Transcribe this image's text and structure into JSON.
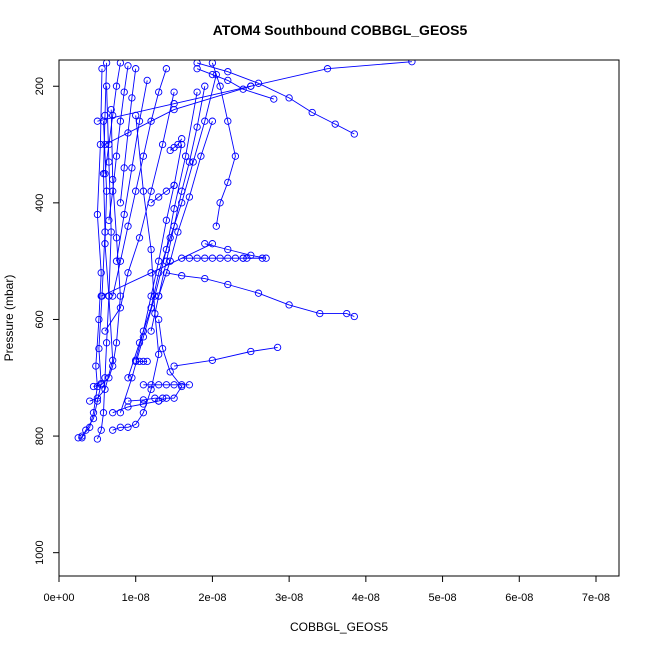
{
  "chart_data": {
    "type": "line",
    "title": "ATOM4 Southbound COBBGL_GEOS5",
    "xlabel": "COBBGL_GEOS5",
    "ylabel": "Pressure (mbar)",
    "xlim": [
      0,
      7.3e-08
    ],
    "ylim": [
      1040,
      155
    ],
    "y_reversed": true,
    "x_ticks": [
      {
        "value": 0,
        "label": "0e+00"
      },
      {
        "value": 1e-08,
        "label": "1e-08"
      },
      {
        "value": 2e-08,
        "label": "2e-08"
      },
      {
        "value": 3e-08,
        "label": "3e-08"
      },
      {
        "value": 4e-08,
        "label": "4e-08"
      },
      {
        "value": 5e-08,
        "label": "5e-08"
      },
      {
        "value": 6e-08,
        "label": "6e-08"
      },
      {
        "value": 7e-08,
        "label": "7e-08"
      }
    ],
    "y_ticks": [
      {
        "value": 200,
        "label": "200"
      },
      {
        "value": 400,
        "label": "400"
      },
      {
        "value": 600,
        "label": "600"
      },
      {
        "value": 800,
        "label": "800"
      },
      {
        "value": 1000,
        "label": "1000"
      }
    ],
    "series_color": "#0000ff",
    "marker": "open-circle",
    "series": [
      {
        "x": [
          2.5e-09,
          3e-09,
          3.5e-09,
          4.5e-09,
          5e-09,
          5.5e-09,
          5.2e-09,
          5.6e-09,
          6e-09,
          5.8e-09,
          6e-09,
          6.2e-09
        ],
        "y": [
          803,
          803,
          790,
          770,
          740,
          710,
          650,
          560,
          450,
          350,
          250,
          160
        ]
      },
      {
        "x": [
          3e-09,
          4e-09,
          4.5e-09,
          5e-09,
          4.8e-09,
          5.2e-09,
          5.5e-09,
          5e-09,
          5.4e-09,
          5.6e-09
        ],
        "y": [
          800,
          785,
          760,
          715,
          680,
          600,
          520,
          420,
          300,
          170
        ]
      },
      {
        "x": [
          5e-09,
          5.5e-09,
          5.8e-09,
          6e-09,
          6.2e-09,
          6.5e-09,
          6.8e-09,
          6.5e-09,
          6.2e-09
        ],
        "y": [
          805,
          790,
          760,
          700,
          640,
          560,
          450,
          330,
          200
        ]
      },
      {
        "x": [
          4.5e-09,
          5.5e-09,
          6.5e-09,
          7e-09,
          7.5e-09,
          8e-09,
          7.5e-09,
          7e-09,
          6.8e-09
        ],
        "y": [
          715,
          712,
          700,
          680,
          640,
          560,
          460,
          360,
          240
        ]
      },
      {
        "x": [
          4e-09,
          5e-09,
          6e-09,
          7e-09,
          6.5e-09,
          6e-09,
          6.2e-09,
          5.8e-09
        ],
        "y": [
          740,
          735,
          720,
          670,
          560,
          470,
          380,
          260
        ]
      },
      {
        "x": [
          7e-09,
          8e-09,
          9e-09,
          1e-08,
          1.1e-08,
          1.2e-08,
          1.3e-08,
          1.25e-08,
          1.2e-08,
          1.1e-08,
          1e-08
        ],
        "y": [
          790,
          785,
          785,
          780,
          760,
          720,
          660,
          590,
          480,
          380,
          250
        ]
      },
      {
        "x": [
          1.1e-08,
          1.2e-08,
          1.3e-08,
          1.4e-08,
          1.5e-08,
          1.6e-08,
          1.7e-08
        ],
        "y": [
          712,
          712,
          712,
          712,
          712,
          712,
          712
        ]
      },
      {
        "x": [
          1.3e-08,
          1.4e-08,
          1.5e-08,
          1.6e-08,
          1.45e-08,
          1.35e-08,
          1.3e-08
        ],
        "y": [
          740,
          735,
          735,
          715,
          690,
          650,
          600
        ]
      },
      {
        "x": [
          1.6e-08,
          1.7e-08,
          1.8e-08,
          1.9e-08,
          2e-08,
          2.1e-08,
          2.2e-08,
          2.3e-08,
          2.4e-08,
          2.45e-08,
          2.65e-08
        ],
        "y": [
          495,
          495,
          495,
          495,
          495,
          495,
          495,
          495,
          495,
          495,
          495
        ]
      },
      {
        "x": [
          1.9e-08,
          2.2e-08,
          2.5e-08,
          2.7e-08,
          2.4e-08
        ],
        "y": [
          470,
          480,
          490,
          495,
          495
        ]
      },
      {
        "x": [
          1.4e-08,
          1.6e-08,
          1.9e-08,
          2.2e-08,
          2.6e-08,
          3e-08,
          3.4e-08,
          3.75e-08,
          3.85e-08
        ],
        "y": [
          520,
          525,
          530,
          540,
          555,
          575,
          590,
          590,
          595
        ]
      },
      {
        "x": [
          1.5e-08,
          2e-08,
          2.5e-08,
          2.85e-08
        ],
        "y": [
          680,
          670,
          655,
          648
        ]
      },
      {
        "x": [
          1.8e-08,
          2e-08,
          2.2e-08,
          2.4e-08,
          2.8e-08
        ],
        "y": [
          170,
          180,
          190,
          205,
          222
        ]
      },
      {
        "x": [
          1.8e-08,
          2.2e-08,
          2.6e-08,
          3e-08,
          3.3e-08,
          3.6e-08,
          3.85e-08
        ],
        "y": [
          160,
          175,
          195,
          220,
          245,
          265,
          282
        ]
      },
      {
        "x": [
          2e-08,
          2.1e-08,
          2.2e-08,
          2.3e-08,
          2.2e-08,
          2.1e-08,
          2.05e-08
        ],
        "y": [
          160,
          200,
          260,
          320,
          365,
          400,
          440
        ]
      },
      {
        "x": [
          6e-09,
          1.5e-08,
          2.5e-08,
          3.5e-08,
          4.6e-08
        ],
        "y": [
          300,
          240,
          200,
          170,
          158
        ]
      },
      {
        "x": [
          6e-09,
          8e-09,
          9e-09,
          1.05e-08,
          1.2e-08,
          1.35e-08,
          1.5e-08
        ],
        "y": [
          620,
          580,
          520,
          460,
          380,
          300,
          210
        ]
      },
      {
        "x": [
          8e-09,
          9.5e-09,
          1.1e-08,
          1.25e-08,
          1.4e-08,
          1.5e-08,
          1.65e-08,
          1.8e-08
        ],
        "y": [
          760,
          700,
          630,
          560,
          480,
          410,
          320,
          210
        ]
      },
      {
        "x": [
          9e-09,
          1.05e-08,
          1.2e-08,
          1.3e-08,
          1.45e-08,
          1.6e-08,
          1.75e-08,
          1.9e-08,
          2.05e-08
        ],
        "y": [
          700,
          640,
          580,
          520,
          460,
          400,
          330,
          260,
          180
        ]
      },
      {
        "x": [
          1e-08,
          1.1e-08,
          1.2e-08,
          1.3e-08,
          1.4e-08,
          1.5e-08,
          1.6e-08
        ],
        "y": [
          670,
          620,
          560,
          500,
          430,
          370,
          300
        ]
      },
      {
        "x": [
          1e-08,
          1.05e-08,
          1.1e-08,
          1.15e-08
        ],
        "y": [
          672,
          672,
          672,
          672
        ]
      },
      {
        "x": [
          1.2e-08,
          1.3e-08,
          1.4e-08,
          1.5e-08,
          1.6e-08,
          1.7e-08,
          1.8e-08,
          1.9e-08
        ],
        "y": [
          620,
          560,
          500,
          440,
          380,
          330,
          270,
          200
        ]
      },
      {
        "x": [
          1.3e-08,
          1.45e-08,
          1.55e-08,
          1.7e-08,
          1.85e-08,
          2e-08
        ],
        "y": [
          560,
          500,
          450,
          390,
          320,
          260
        ]
      },
      {
        "x": [
          7e-09,
          8e-09,
          9e-09,
          1e-08,
          1.1e-08,
          1.2e-08,
          1.3e-08,
          1.4e-08
        ],
        "y": [
          560,
          500,
          440,
          380,
          320,
          260,
          210,
          170
        ]
      },
      {
        "x": [
          7.5e-09,
          8.5e-09,
          9.5e-09,
          1.05e-08,
          1.15e-08
        ],
        "y": [
          500,
          420,
          340,
          260,
          190
        ]
      },
      {
        "x": [
          8e-09,
          8.5e-09,
          9e-09,
          9.5e-09,
          1e-08
        ],
        "y": [
          400,
          340,
          280,
          220,
          170
        ]
      },
      {
        "x": [
          6.5e-09,
          7e-09,
          7.5e-09,
          8e-09,
          8.5e-09,
          9e-09
        ],
        "y": [
          430,
          380,
          320,
          260,
          210,
          165
        ]
      },
      {
        "x": [
          6e-09,
          6.5e-09,
          7e-09,
          7.5e-09,
          8e-09
        ],
        "y": [
          350,
          300,
          250,
          200,
          160
        ]
      },
      {
        "x": [
          1.45e-08,
          1.5e-08,
          1.55e-08,
          1.6e-08
        ],
        "y": [
          310,
          305,
          300,
          290
        ]
      },
      {
        "x": [
          1.2e-08,
          1.3e-08,
          1.4e-08,
          1.5e-08
        ],
        "y": [
          400,
          390,
          380,
          370
        ]
      },
      {
        "x": [
          7e-09,
          9e-09,
          1.1e-08,
          1.3e-08
        ],
        "y": [
          760,
          750,
          745,
          740
        ]
      },
      {
        "x": [
          9e-09,
          1.1e-08,
          1.25e-08,
          1.35e-08
        ],
        "y": [
          740,
          738,
          735,
          735
        ]
      },
      {
        "x": [
          5e-09,
          1.5e-08,
          2.5e-08
        ],
        "y": [
          260,
          230,
          200
        ]
      },
      {
        "x": [
          5.5e-09,
          1.2e-08,
          2e-08
        ],
        "y": [
          560,
          520,
          470
        ]
      }
    ]
  }
}
